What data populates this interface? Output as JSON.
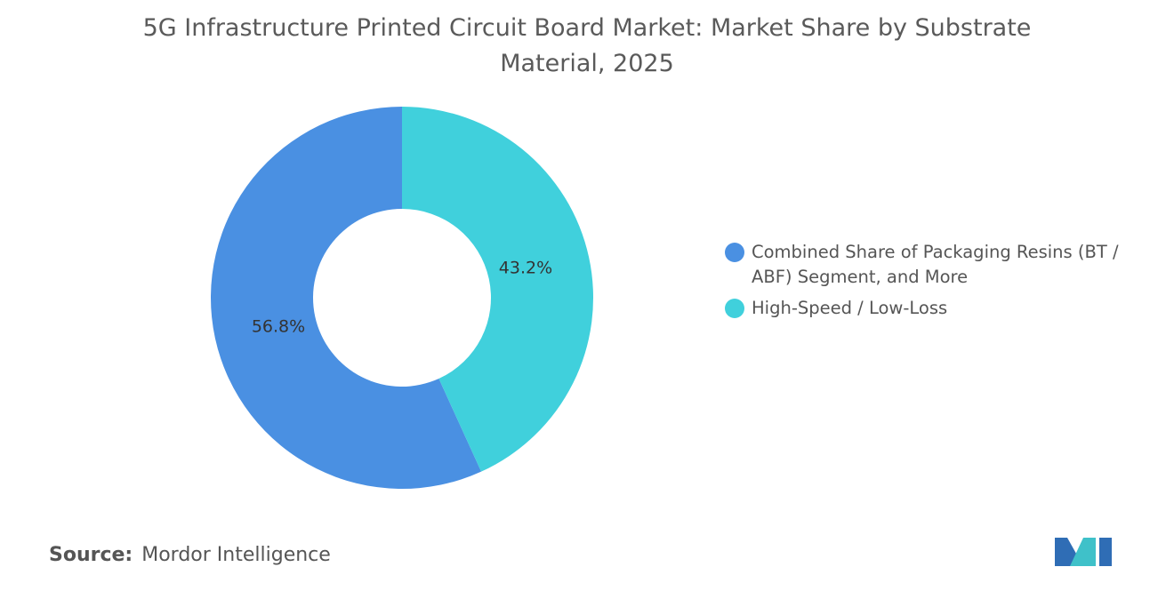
{
  "chart_data": {
    "type": "donut",
    "title": "5G Infrastructure Printed Circuit Board Market: Market Share by Substrate Material, 2025",
    "categories": [
      "Combined Share of Packaging Resins (BT / ABF) Segment, and More",
      "High-Speed / Low-Loss"
    ],
    "values": [
      56.8,
      43.2
    ],
    "value_labels": [
      "56.8%",
      "43.2%"
    ],
    "colors": [
      "#4a90e2",
      "#40d0dc"
    ],
    "legend": "right"
  },
  "source": {
    "label": "Source:",
    "text": "Mordor Intelligence"
  }
}
